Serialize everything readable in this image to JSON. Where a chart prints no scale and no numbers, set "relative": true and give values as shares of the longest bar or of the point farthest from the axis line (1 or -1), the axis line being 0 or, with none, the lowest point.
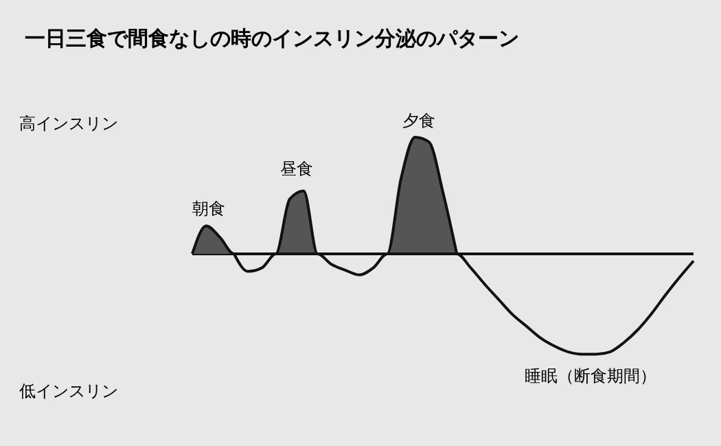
{
  "chart_data": {
    "type": "line",
    "title": "一日三食で間食なしの時のインスリン分泌のパターン",
    "relative": true,
    "categories": [
      null,
      null,
      null,
      null,
      null,
      null,
      null,
      null,
      null,
      null,
      null,
      null,
      null,
      null,
      null,
      null,
      null,
      null,
      null,
      null,
      null,
      null,
      null,
      null,
      null,
      null,
      null,
      null,
      null,
      null,
      null,
      null,
      null,
      null,
      null,
      null,
      null
    ],
    "series": [
      {
        "type": "area",
        "color": "#555555",
        "values": [
          0,
          0.24,
          0.14,
          0,
          null,
          null,
          0,
          0.47,
          0.54,
          0,
          null,
          null,
          null,
          null,
          0,
          0.65,
          1,
          0.96,
          0.53,
          0,
          null,
          null,
          null,
          null,
          null,
          null,
          null,
          null,
          null,
          null,
          null,
          null,
          null,
          null,
          null,
          null,
          null
        ]
      },
      {
        "color": "#111111",
        "values": [
          null,
          null,
          null,
          0,
          -0.15,
          -0.12,
          0,
          null,
          null,
          0,
          -0.09,
          -0.14,
          -0.18,
          -0.12,
          0,
          null,
          null,
          null,
          null,
          0,
          -0.12,
          -0.26,
          -0.39,
          -0.52,
          -0.62,
          -0.72,
          -0.79,
          -0.84,
          -0.86,
          -0.86,
          -0.84,
          -0.76,
          -0.65,
          -0.51,
          -0.35,
          -0.2,
          -0.06
        ]
      }
    ],
    "annotations": [
      "朝食",
      "昼食",
      "夕食",
      "睡眠（断食期間）",
      "高インスリン",
      "低インスリン"
    ]
  }
}
